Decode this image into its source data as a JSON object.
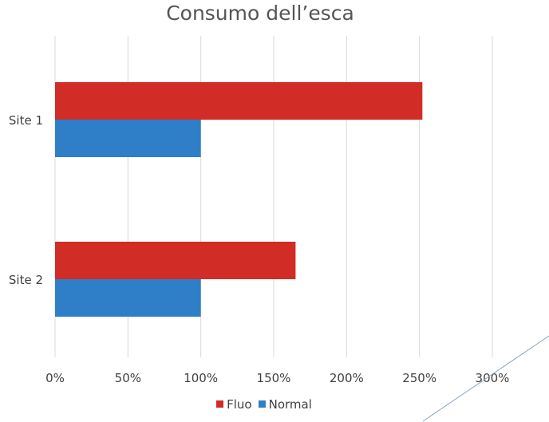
{
  "chart_data": {
    "type": "bar",
    "orientation": "horizontal",
    "title": "Consumo dell’esca",
    "categories": [
      "Site 1",
      "Site 2"
    ],
    "series": [
      {
        "name": "Fluo",
        "color": "#d12c26",
        "values": [
          252,
          165
        ]
      },
      {
        "name": "Normal",
        "color": "#2e7fc8",
        "values": [
          100,
          100
        ]
      }
    ],
    "xlim": [
      0,
      300
    ],
    "xticks": [
      0,
      50,
      100,
      150,
      200,
      250,
      300
    ],
    "tick_suffix": "%",
    "grid": true,
    "legend_position": "bottom"
  }
}
